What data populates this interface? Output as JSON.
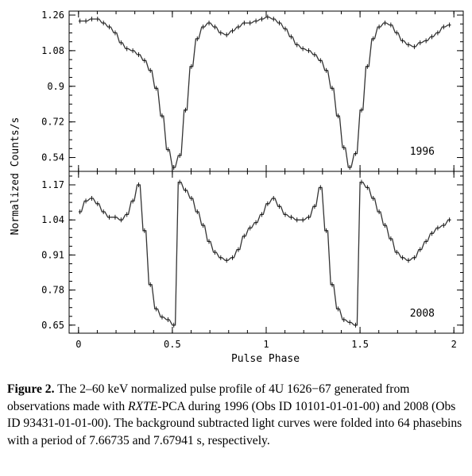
{
  "figure": {
    "xlabel": "Pulse Phase",
    "ylabel": "Normalized Counts/s"
  },
  "caption": {
    "label": "Figure 2.",
    "part1": "The 2–60 keV normalized pulse profile of 4U 1626−67 generated from observations made with ",
    "instrument_italic": "RXTE",
    "part2": "-PCA during 1996 (Obs ID 10101-01-01-00) and 2008 (Obs ID 93431-01-01-00). The background subtracted light curves were folded into 64 phasebins with a period of 7.66735 and 7.67941 s, respectively."
  },
  "chart_data": [
    {
      "type": "line",
      "title": "1996",
      "xlabel": "Pulse Phase",
      "ylabel": "Normalized Counts/s",
      "xlim": [
        -0.05,
        2.05
      ],
      "ylim": [
        0.47,
        1.28
      ],
      "xticks": [
        0,
        0.5,
        1,
        1.5,
        2
      ],
      "yticks": [
        0.54,
        0.72,
        0.9,
        1.08,
        1.26
      ],
      "ytick_labels": [
        "0.54",
        "0.72",
        "0.9",
        "1.08",
        "1.26"
      ],
      "x": [
        0.0,
        0.0313,
        0.0625,
        0.0938,
        0.125,
        0.1563,
        0.1875,
        0.2188,
        0.25,
        0.2813,
        0.3125,
        0.3438,
        0.375,
        0.4063,
        0.4375,
        0.4688,
        0.5,
        0.5313,
        0.5625,
        0.5938,
        0.625,
        0.6563,
        0.6875,
        0.7188,
        0.75,
        0.7813,
        0.8125,
        0.8438,
        0.875,
        0.9063,
        0.9375,
        0.9688,
        1.0,
        1.0313,
        1.0625,
        1.0938,
        1.125,
        1.1563,
        1.1875,
        1.2188,
        1.25,
        1.2813,
        1.3125,
        1.3438,
        1.375,
        1.4063,
        1.4375,
        1.4688,
        1.5,
        1.5313,
        1.5625,
        1.5938,
        1.625,
        1.6563,
        1.6875,
        1.7188,
        1.75,
        1.7813,
        1.8125,
        1.8438,
        1.875,
        1.9063,
        1.9375,
        1.9688
      ],
      "values": [
        1.23,
        1.23,
        1.24,
        1.24,
        1.22,
        1.2,
        1.17,
        1.12,
        1.09,
        1.08,
        1.06,
        1.03,
        0.98,
        0.89,
        0.75,
        0.58,
        0.49,
        0.55,
        0.78,
        1.0,
        1.14,
        1.2,
        1.22,
        1.2,
        1.17,
        1.16,
        1.18,
        1.2,
        1.22,
        1.22,
        1.23,
        1.24,
        1.25,
        1.24,
        1.22,
        1.19,
        1.15,
        1.11,
        1.09,
        1.08,
        1.06,
        1.03,
        0.98,
        0.89,
        0.75,
        0.59,
        0.49,
        0.56,
        0.78,
        1.0,
        1.14,
        1.2,
        1.22,
        1.21,
        1.17,
        1.13,
        1.11,
        1.1,
        1.12,
        1.13,
        1.15,
        1.17,
        1.2,
        1.21
      ]
    },
    {
      "type": "line",
      "title": "2008",
      "xlabel": "Pulse Phase",
      "ylabel": "Normalized Counts/s",
      "xlim": [
        -0.05,
        2.05
      ],
      "ylim": [
        0.62,
        1.22
      ],
      "xticks": [
        0,
        0.5,
        1,
        1.5,
        2
      ],
      "xtick_labels": [
        "0",
        "0.5",
        "1",
        "1.5",
        "2"
      ],
      "yticks": [
        0.65,
        0.78,
        0.91,
        1.04,
        1.17
      ],
      "ytick_labels": [
        "0.65",
        "0.78",
        "0.91",
        "1.04",
        "1.17"
      ],
      "x": [
        0.0,
        0.0313,
        0.0625,
        0.0938,
        0.125,
        0.1563,
        0.1875,
        0.2188,
        0.25,
        0.2813,
        0.3125,
        0.3438,
        0.375,
        0.4063,
        0.4375,
        0.4688,
        0.5,
        0.5313,
        0.5625,
        0.5938,
        0.625,
        0.6563,
        0.6875,
        0.7188,
        0.75,
        0.7813,
        0.8125,
        0.8438,
        0.875,
        0.9063,
        0.9375,
        0.9688,
        1.0,
        1.0313,
        1.0625,
        1.0938,
        1.125,
        1.1563,
        1.1875,
        1.2188,
        1.25,
        1.2813,
        1.3125,
        1.3438,
        1.375,
        1.4063,
        1.4375,
        1.4688,
        1.5,
        1.5313,
        1.5625,
        1.5938,
        1.625,
        1.6563,
        1.6875,
        1.7188,
        1.75,
        1.7813,
        1.8125,
        1.8438,
        1.875,
        1.9063,
        1.9375,
        1.9688
      ],
      "values": [
        1.07,
        1.11,
        1.12,
        1.1,
        1.07,
        1.05,
        1.05,
        1.04,
        1.06,
        1.11,
        1.17,
        1.0,
        0.8,
        0.71,
        0.68,
        0.67,
        0.65,
        1.18,
        1.15,
        1.12,
        1.07,
        1.02,
        0.96,
        0.92,
        0.9,
        0.89,
        0.9,
        0.93,
        0.98,
        1.01,
        1.03,
        1.06,
        1.1,
        1.12,
        1.09,
        1.06,
        1.05,
        1.04,
        1.04,
        1.05,
        1.09,
        1.16,
        1.0,
        0.8,
        0.71,
        0.67,
        0.66,
        0.65,
        1.18,
        1.16,
        1.12,
        1.07,
        1.02,
        0.97,
        0.92,
        0.9,
        0.89,
        0.9,
        0.93,
        0.96,
        0.99,
        1.01,
        1.02,
        1.04
      ]
    }
  ]
}
